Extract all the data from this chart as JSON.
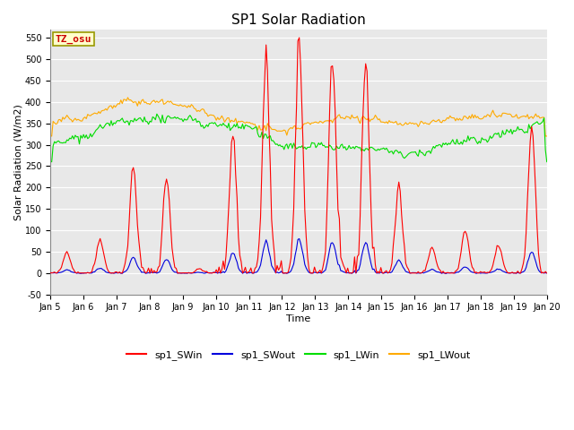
{
  "title": "SP1 Solar Radiation",
  "xlabel": "Time",
  "ylabel": "Solar Radiation (W/m2)",
  "ylim": [
    -50,
    570
  ],
  "yticks": [
    -50,
    0,
    50,
    100,
    150,
    200,
    250,
    300,
    350,
    400,
    450,
    500,
    550
  ],
  "date_start": 5,
  "date_end": 20,
  "bg_color": "#e8e8e8",
  "colors": {
    "sp1_SWin": "#ff0000",
    "sp1_SWout": "#0000dd",
    "sp1_LWin": "#00dd00",
    "sp1_LWout": "#ffaa00"
  },
  "tz_label": "TZ_osu",
  "tz_box_color": "#ffffcc",
  "tz_text_color": "#cc0000",
  "linewidth": 0.8,
  "legend_labels": [
    "sp1_SWin",
    "sp1_SWout",
    "sp1_LWin",
    "sp1_LWout"
  ],
  "figsize": [
    6.4,
    4.8
  ],
  "dpi": 100,
  "title_fontsize": 11,
  "axis_label_fontsize": 8,
  "tick_fontsize": 7,
  "legend_fontsize": 8
}
